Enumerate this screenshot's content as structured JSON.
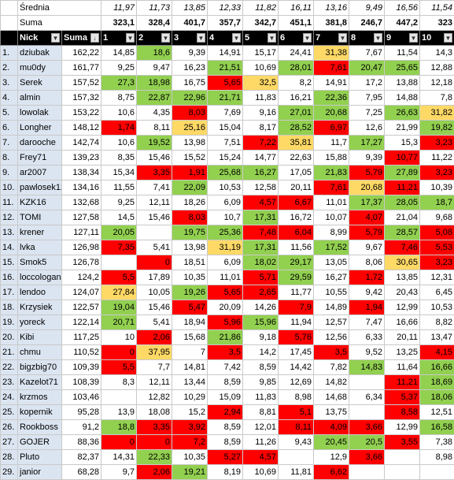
{
  "header_rows": {
    "avg_label": "Średnia",
    "sum_label": "Suma",
    "averages": [
      "11,97",
      "11,73",
      "13,85",
      "12,33",
      "11,82",
      "16,11",
      "13,16",
      "9,49",
      "16,56",
      "11,54"
    ],
    "sums": [
      "323,1",
      "328,4",
      "401,7",
      "357,7",
      "342,7",
      "451,1",
      "381,8",
      "246,7",
      "447,2",
      "323"
    ]
  },
  "columns": {
    "nick": "Nick",
    "suma": "Suma",
    "rounds": [
      "1",
      "2",
      "3",
      "4",
      "5",
      "6",
      "7",
      "8",
      "9",
      "10"
    ],
    "filter_icon": "dropdown-arrow-icon",
    "sort_icon": "sort-descending-icon"
  },
  "colors": {
    "green": "#92d050",
    "red": "#ff0000",
    "yellow": "#ffd966",
    "name_bg": "#dbe5f1",
    "header_bg": "#000000"
  },
  "rows": [
    {
      "rank": "1.",
      "nick": "dziubak",
      "suma": "162,22",
      "vals": [
        "14,85",
        "18,6",
        "9,39",
        "14,91",
        "15,17",
        "24,41",
        "31,38",
        "7,67",
        "11,54",
        "14,3"
      ],
      "c": [
        "",
        "g",
        "",
        "",
        "",
        "",
        "y",
        "",
        "",
        ""
      ]
    },
    {
      "rank": "2.",
      "nick": "mu0dy",
      "suma": "161,77",
      "vals": [
        "9,25",
        "9,47",
        "16,23",
        "21,51",
        "10,69",
        "28,01",
        "7,61",
        "20,47",
        "25,65",
        "12,88"
      ],
      "c": [
        "",
        "",
        "",
        "g",
        "",
        "g",
        "r",
        "g",
        "g",
        ""
      ]
    },
    {
      "rank": "3.",
      "nick": "Serek",
      "suma": "157,52",
      "vals": [
        "27,3",
        "18,98",
        "16,75",
        "5,65",
        "32,5",
        "8,2",
        "14,91",
        "17,2",
        "13,88",
        "12,18"
      ],
      "c": [
        "g",
        "g",
        "",
        "r",
        "y",
        "",
        "",
        "",
        "",
        ""
      ]
    },
    {
      "rank": "4.",
      "nick": "almin",
      "suma": "157,32",
      "vals": [
        "8,75",
        "22,87",
        "22,96",
        "21,71",
        "11,83",
        "16,21",
        "22,36",
        "7,95",
        "14,88",
        "7,8"
      ],
      "c": [
        "",
        "g",
        "g",
        "g",
        "",
        "",
        "g",
        "",
        "",
        ""
      ]
    },
    {
      "rank": "5.",
      "nick": "lowolak",
      "suma": "153,22",
      "vals": [
        "10,6",
        "4,35",
        "8,03",
        "7,69",
        "9,16",
        "27,01",
        "20,68",
        "7,25",
        "26,63",
        "31,82"
      ],
      "c": [
        "",
        "",
        "r",
        "",
        "",
        "g",
        "g",
        "",
        "g",
        "y"
      ]
    },
    {
      "rank": "6.",
      "nick": "Longher",
      "suma": "148,12",
      "vals": [
        "1,74",
        "8,11",
        "25,16",
        "15,04",
        "8,17",
        "28,52",
        "6,97",
        "12,6",
        "21,99",
        "19,82"
      ],
      "c": [
        "r",
        "",
        "y",
        "",
        "",
        "g",
        "r",
        "",
        "",
        "g"
      ]
    },
    {
      "rank": "7.",
      "nick": "darooche",
      "suma": "142,74",
      "vals": [
        "10,6",
        "19,52",
        "13,98",
        "7,51",
        "7,22",
        "35,81",
        "11,7",
        "17,27",
        "15,3",
        "3,23"
      ],
      "c": [
        "",
        "g",
        "",
        "",
        "r",
        "y",
        "",
        "g",
        "",
        "r"
      ]
    },
    {
      "rank": "8.",
      "nick": "Frey71",
      "suma": "139,23",
      "vals": [
        "8,35",
        "15,46",
        "15,52",
        "15,24",
        "14,77",
        "22,63",
        "15,88",
        "9,39",
        "10,77",
        "11,22"
      ],
      "c": [
        "",
        "",
        "",
        "",
        "",
        "",
        "",
        "",
        "r",
        ""
      ]
    },
    {
      "rank": "9.",
      "nick": "ar2007",
      "suma": "138,34",
      "vals": [
        "15,34",
        "3,35",
        "1,91",
        "25,68",
        "16,27",
        "17,05",
        "21,83",
        "5,79",
        "27,89",
        "3,23"
      ],
      "c": [
        "",
        "r",
        "r",
        "g",
        "g",
        "",
        "g",
        "r",
        "g",
        "r"
      ]
    },
    {
      "rank": "10.",
      "nick": "pawlosek12",
      "suma": "134,16",
      "vals": [
        "11,55",
        "7,41",
        "22,09",
        "10,53",
        "12,58",
        "20,11",
        "7,61",
        "20,68",
        "11,21",
        "10,39"
      ],
      "c": [
        "",
        "",
        "g",
        "",
        "",
        "",
        "r",
        "y",
        "r",
        ""
      ]
    },
    {
      "rank": "11.",
      "nick": "KZK16",
      "suma": "132,68",
      "vals": [
        "9,25",
        "12,11",
        "18,26",
        "6,09",
        "4,57",
        "6,67",
        "11,01",
        "17,37",
        "28,05",
        "18,7"
      ],
      "c": [
        "",
        "",
        "",
        "",
        "r",
        "r",
        "",
        "g",
        "g",
        "g"
      ]
    },
    {
      "rank": "12.",
      "nick": "TOMI",
      "suma": "127,58",
      "vals": [
        "14,5",
        "15,46",
        "8,03",
        "10,7",
        "17,31",
        "16,72",
        "10,07",
        "4,07",
        "21,04",
        "9,68"
      ],
      "c": [
        "",
        "",
        "r",
        "",
        "g",
        "",
        "",
        "r",
        "",
        ""
      ]
    },
    {
      "rank": "13.",
      "nick": "krener",
      "suma": "127,11",
      "vals": [
        "20,05",
        "",
        "19,75",
        "25,36",
        "7,48",
        "6,04",
        "8,99",
        "5,79",
        "28,57",
        "5,08"
      ],
      "c": [
        "g",
        "",
        "g",
        "g",
        "r",
        "r",
        "",
        "r",
        "g",
        "r"
      ]
    },
    {
      "rank": "14.",
      "nick": "lvka",
      "suma": "126,98",
      "vals": [
        "7,35",
        "5,41",
        "13,98",
        "31,19",
        "17,31",
        "11,56",
        "17,52",
        "9,67",
        "7,46",
        "5,53"
      ],
      "c": [
        "r",
        "",
        "",
        "y",
        "g",
        "",
        "g",
        "",
        "r",
        "r"
      ]
    },
    {
      "rank": "15.",
      "nick": "Smok5",
      "suma": "126,78",
      "vals": [
        "",
        "0",
        "18,51",
        "6,09",
        "18,02",
        "29,17",
        "13,05",
        "8,06",
        "30,65",
        "3,23"
      ],
      "c": [
        "",
        "r",
        "",
        "",
        "g",
        "g",
        "",
        "",
        "y",
        "r"
      ]
    },
    {
      "rank": "16.",
      "nick": "loccologan",
      "suma": "124,2",
      "vals": [
        "5,5",
        "17,89",
        "10,35",
        "11,01",
        "5,71",
        "29,59",
        "16,27",
        "1,72",
        "13,85",
        "12,31"
      ],
      "c": [
        "r",
        "",
        "",
        "",
        "r",
        "g",
        "",
        "r",
        "",
        ""
      ]
    },
    {
      "rank": "17.",
      "nick": "lendoo",
      "suma": "124,07",
      "vals": [
        "27,84",
        "10,05",
        "19,26",
        "5,65",
        "2,65",
        "11,77",
        "10,55",
        "9,42",
        "20,43",
        "6,45"
      ],
      "c": [
        "y",
        "",
        "g",
        "r",
        "r",
        "",
        "",
        "",
        "",
        ""
      ]
    },
    {
      "rank": "18.",
      "nick": "Krzysiek",
      "suma": "122,57",
      "vals": [
        "19,04",
        "15,46",
        "5,47",
        "20,09",
        "14,26",
        "7,9",
        "14,89",
        "1,94",
        "12,99",
        "10,53"
      ],
      "c": [
        "g",
        "",
        "r",
        "",
        "",
        "r",
        "",
        "r",
        "",
        ""
      ]
    },
    {
      "rank": "19.",
      "nick": "yoreck",
      "suma": "122,14",
      "vals": [
        "20,71",
        "5,41",
        "18,94",
        "5,96",
        "15,96",
        "11,94",
        "12,57",
        "7,47",
        "16,66",
        "8,82"
      ],
      "c": [
        "g",
        "",
        "",
        "r",
        "g",
        "",
        "",
        "",
        "",
        ""
      ]
    },
    {
      "rank": "20.",
      "nick": "Kibi",
      "suma": "117,25",
      "vals": [
        "10",
        "2,06",
        "15,68",
        "21,86",
        "9,18",
        "5,76",
        "12,56",
        "6,33",
        "20,11",
        "13,47"
      ],
      "c": [
        "",
        "r",
        "",
        "g",
        "",
        "r",
        "",
        "",
        "",
        ""
      ]
    },
    {
      "rank": "21.",
      "nick": "chmu",
      "suma": "110,52",
      "vals": [
        "0",
        "37,95",
        "7",
        "3,5",
        "14,2",
        "17,45",
        "3,5",
        "9,52",
        "13,25",
        "4,15"
      ],
      "c": [
        "r",
        "y",
        "",
        "r",
        "",
        "",
        "r",
        "",
        "",
        "r"
      ]
    },
    {
      "rank": "22.",
      "nick": "bigzbig70",
      "suma": "109,39",
      "vals": [
        "5,5",
        "7,7",
        "14,81",
        "7,42",
        "8,59",
        "14,42",
        "7,82",
        "14,83",
        "11,64",
        "16,66"
      ],
      "c": [
        "r",
        "",
        "",
        "",
        "",
        "",
        "",
        "g",
        "",
        "g"
      ]
    },
    {
      "rank": "23.",
      "nick": "Kazelot71",
      "suma": "108,39",
      "vals": [
        "8,3",
        "12,11",
        "13,44",
        "8,59",
        "9,85",
        "12,69",
        "14,82",
        "",
        "11,21",
        "18,69"
      ],
      "c": [
        "",
        "",
        "",
        "",
        "",
        "",
        "",
        "",
        "r",
        "g"
      ]
    },
    {
      "rank": "24.",
      "nick": "krzmos",
      "suma": "103,46",
      "vals": [
        "",
        "12,82",
        "10,29",
        "15,09",
        "11,83",
        "8,98",
        "14,68",
        "6,34",
        "5,37",
        "18,06"
      ],
      "c": [
        "",
        "",
        "",
        "",
        "",
        "",
        "",
        "",
        "r",
        "g"
      ]
    },
    {
      "rank": "25.",
      "nick": "kopernik",
      "suma": "95,28",
      "vals": [
        "13,9",
        "18,08",
        "15,2",
        "2,94",
        "8,81",
        "5,1",
        "13,75",
        "",
        "8,58",
        "12,51"
      ],
      "c": [
        "",
        "",
        "",
        "r",
        "",
        "r",
        "",
        "",
        "r",
        ""
      ]
    },
    {
      "rank": "26.",
      "nick": "Rookboss",
      "suma": "91,2",
      "vals": [
        "18,8",
        "3,35",
        "3,92",
        "8,59",
        "12,01",
        "8,11",
        "4,09",
        "3,66",
        "12,99",
        "16,58"
      ],
      "c": [
        "g",
        "r",
        "r",
        "",
        "",
        "r",
        "r",
        "r",
        "",
        "g"
      ]
    },
    {
      "rank": "27.",
      "nick": "GOJER",
      "suma": "88,36",
      "vals": [
        "0",
        "0",
        "7,2",
        "8,59",
        "11,26",
        "9,43",
        "20,45",
        "20,5",
        "3,55",
        "7,38"
      ],
      "c": [
        "r",
        "r",
        "r",
        "",
        "",
        "",
        "g",
        "g",
        "r",
        ""
      ]
    },
    {
      "rank": "28.",
      "nick": "Pluto",
      "suma": "82,37",
      "vals": [
        "14,31",
        "22,33",
        "10,35",
        "5,27",
        "4,57",
        "",
        "12,9",
        "3,66",
        "",
        "8,98"
      ],
      "c": [
        "",
        "g",
        "",
        "r",
        "r",
        "",
        "",
        "r",
        "",
        ""
      ]
    },
    {
      "rank": "29.",
      "nick": "janior",
      "suma": "68,28",
      "vals": [
        "9,7",
        "2,06",
        "19,21",
        "8,19",
        "10,69",
        "11,81",
        "6,62",
        "",
        "",
        ""
      ],
      "c": [
        "",
        "r",
        "g",
        "",
        "",
        "",
        "r",
        "",
        "",
        ""
      ]
    }
  ]
}
